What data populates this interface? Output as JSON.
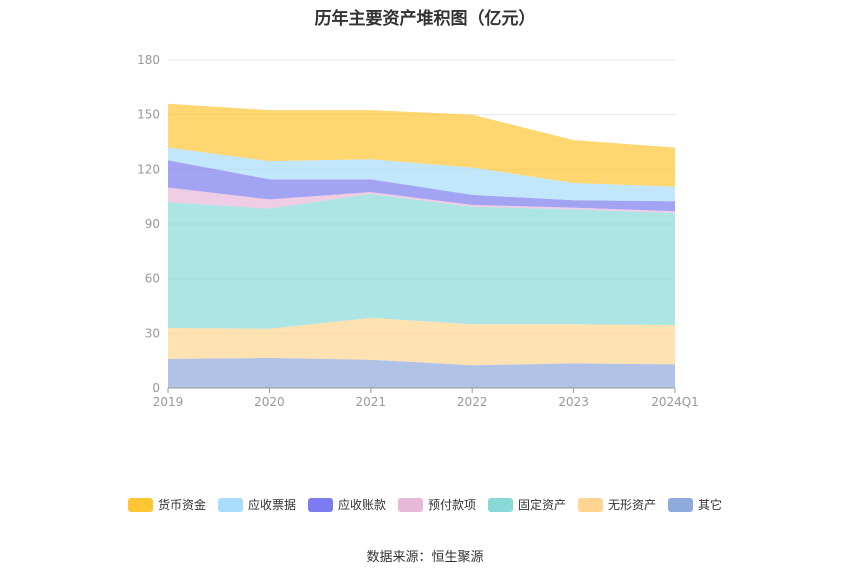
{
  "chart_data": {
    "type": "area",
    "stacked": true,
    "title": "历年主要资产堆积图（亿元）",
    "x": [
      "2019",
      "2020",
      "2021",
      "2022",
      "2023",
      "2024Q1"
    ],
    "ylim": [
      0,
      180
    ],
    "yticks": [
      0,
      30,
      60,
      90,
      120,
      150,
      180
    ],
    "grid": true,
    "legend_position": "bottom",
    "series": [
      {
        "name": "其它",
        "color": "#8FAADC",
        "values": [
          16,
          16.5,
          15.5,
          12.5,
          13.5,
          13
        ]
      },
      {
        "name": "无形资产",
        "color": "#FFD591",
        "values": [
          17,
          16,
          23,
          22.5,
          21.5,
          21.5
        ]
      },
      {
        "name": "固定资产",
        "color": "#8AD9D9",
        "values": [
          69,
          66,
          68,
          64.5,
          63,
          61.5
        ]
      },
      {
        "name": "预付款项",
        "color": "#E8B8D8",
        "values": [
          8,
          5,
          1,
          1,
          1,
          1
        ]
      },
      {
        "name": "应收账款",
        "color": "#7C7CF0",
        "values": [
          15,
          11,
          7,
          5.5,
          4,
          5.5
        ]
      },
      {
        "name": "应收票据",
        "color": "#A8DCFA",
        "values": [
          7,
          10,
          11,
          15,
          9.5,
          8
        ]
      },
      {
        "name": "货币资金",
        "color": "#FFC533",
        "values": [
          24,
          28,
          27,
          29,
          23.5,
          21.5
        ]
      }
    ],
    "legend_order": [
      "货币资金",
      "应收票据",
      "应收账款",
      "预付款项",
      "固定资产",
      "无形资产",
      "其它"
    ]
  },
  "source_text": "数据来源：恒生聚源"
}
